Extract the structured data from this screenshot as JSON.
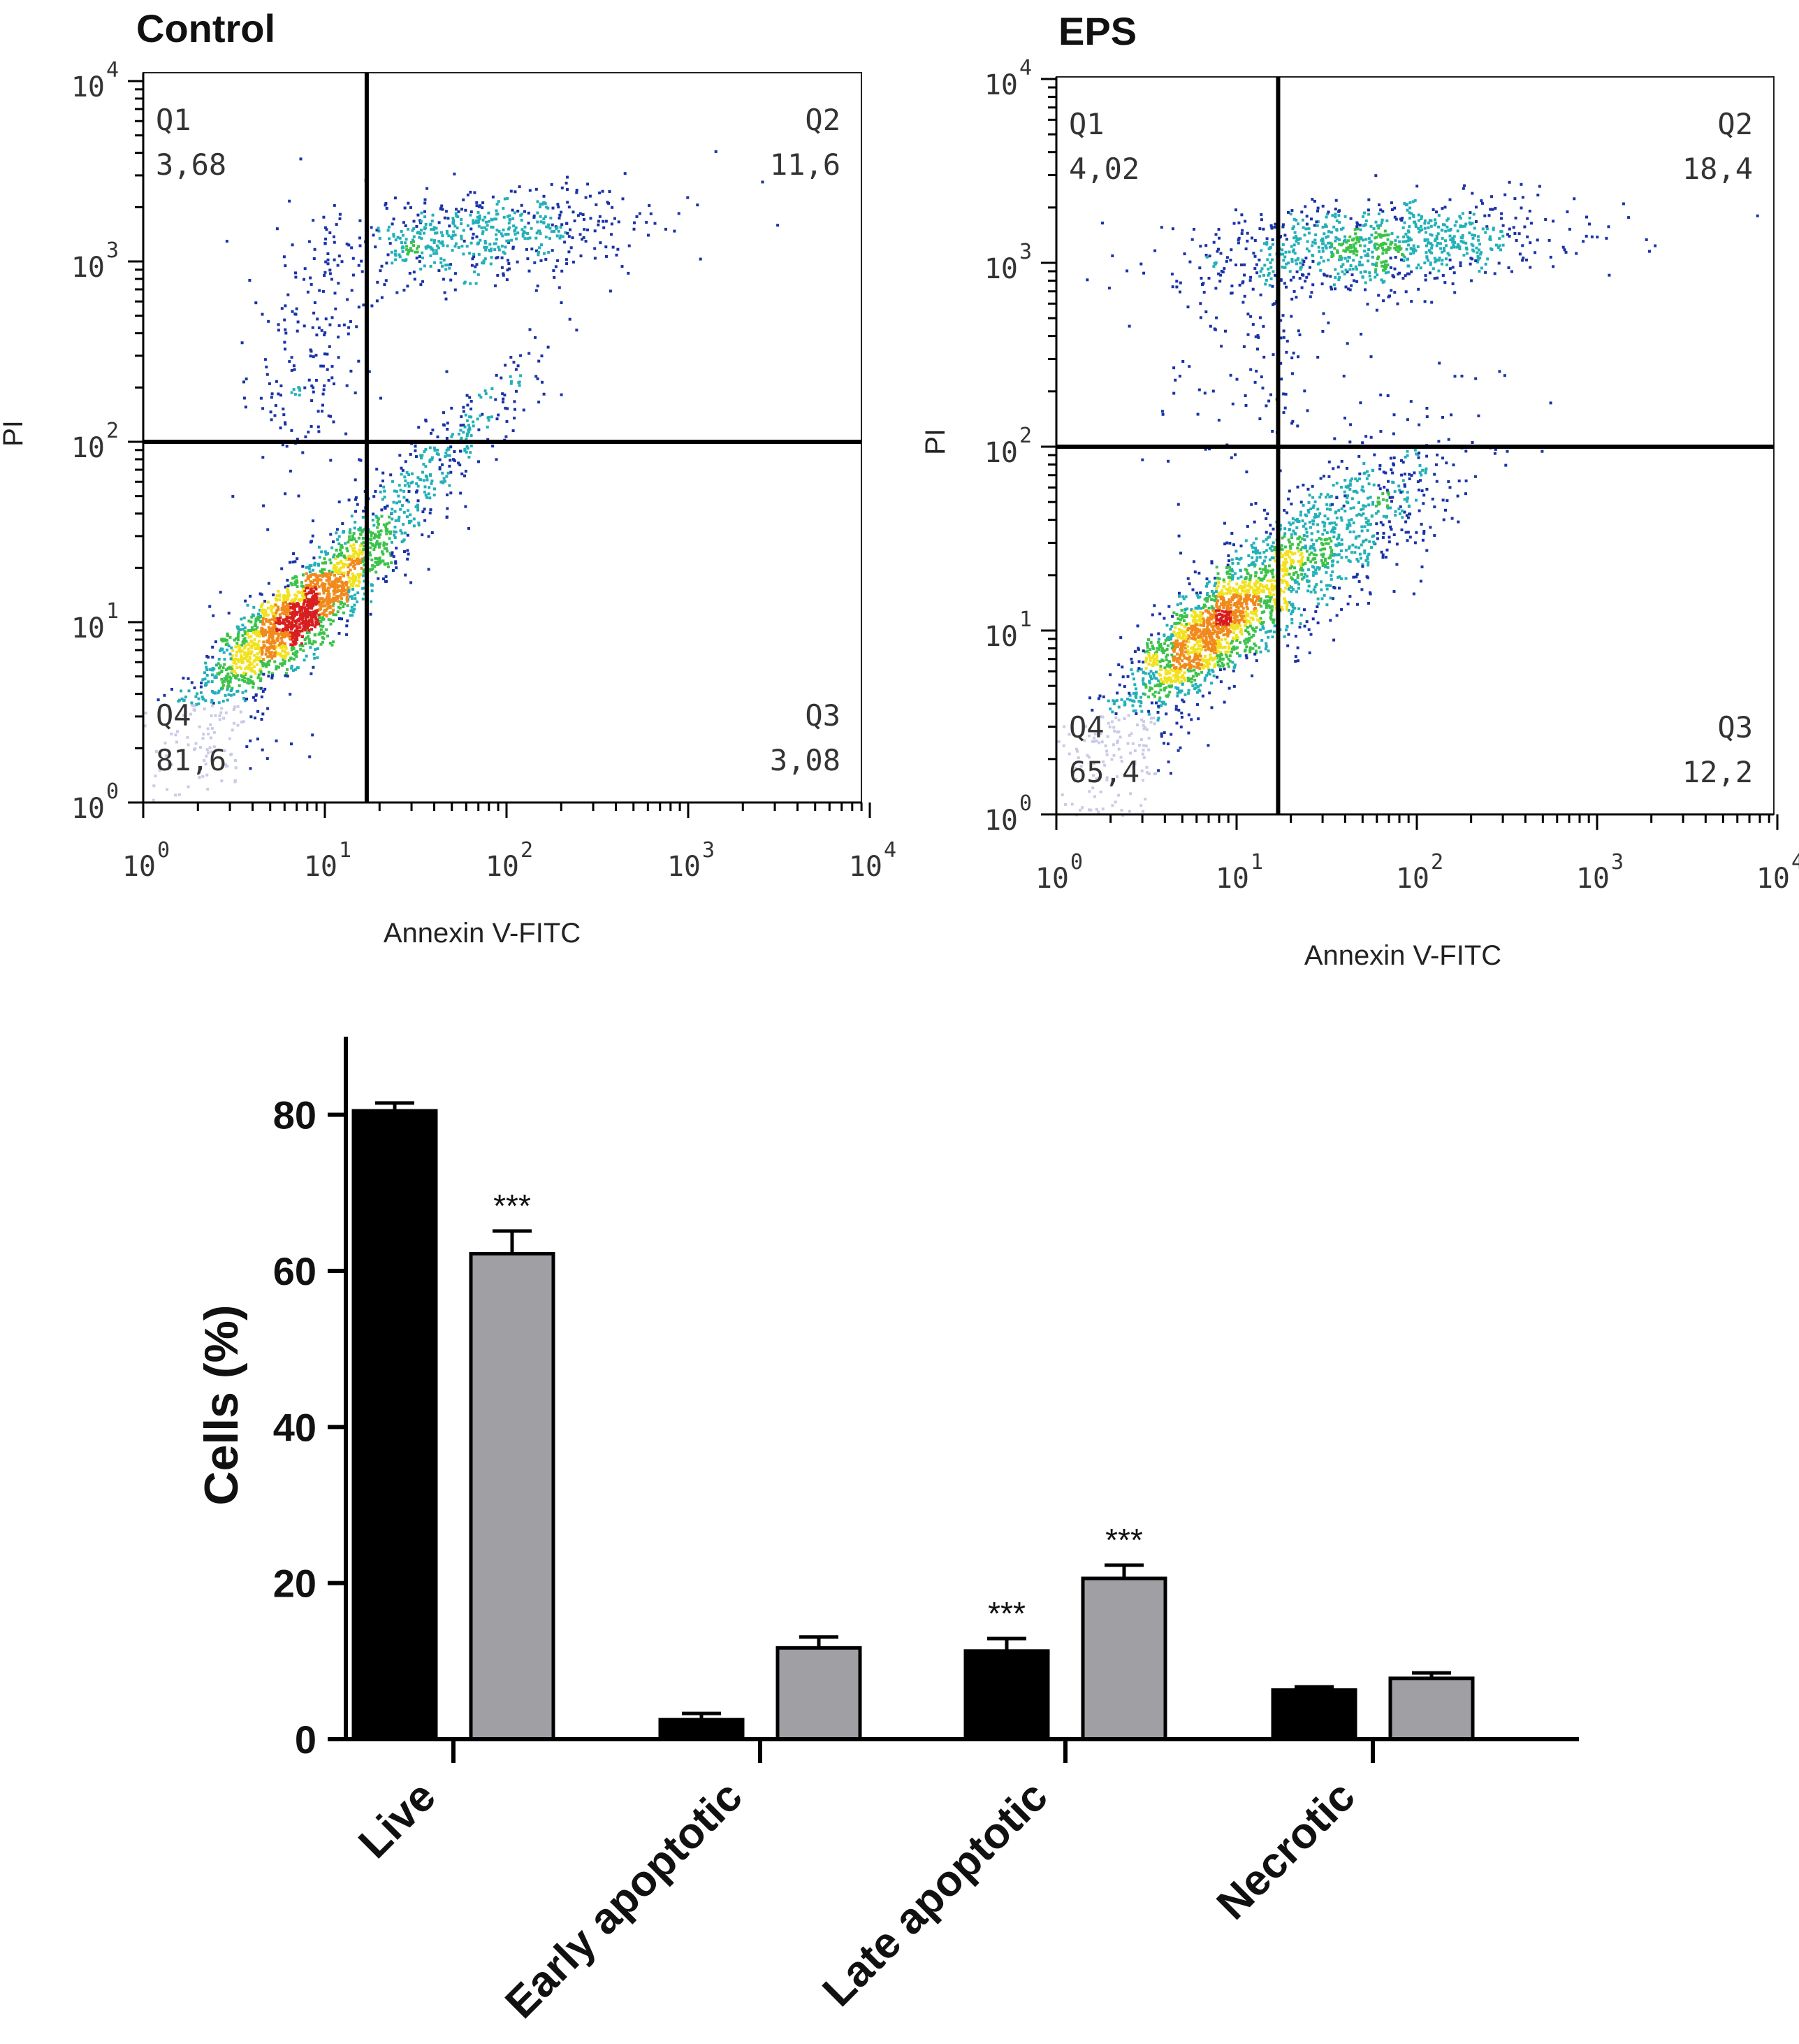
{
  "chart_data": [
    {
      "type": "scatter",
      "title": "Control",
      "xlabel": "Annexin V-FITC",
      "ylabel": "PI",
      "scale": "log",
      "xlim": [
        1,
        10000
      ],
      "ylim": [
        1,
        10000
      ],
      "ticks": [
        "10",
        "10",
        "10",
        "10",
        "10"
      ],
      "tick_exponents": [
        "0",
        "1",
        "2",
        "3",
        "4"
      ],
      "gate": {
        "x": 17,
        "y": 100
      },
      "quadrants": [
        {
          "name": "Q1",
          "value": "3,68"
        },
        {
          "name": "Q2",
          "value": "11,6"
        },
        {
          "name": "Q3",
          "value": "3,08"
        },
        {
          "name": "Q4",
          "value": "81,6"
        }
      ],
      "density_colors": [
        "#1a33a8",
        "#23b0b8",
        "#3cc24a",
        "#f2e21e",
        "#f08a1c",
        "#d81e1e"
      ]
    },
    {
      "type": "scatter",
      "title": "EPS",
      "xlabel": "Annexin V-FITC",
      "ylabel": "PI",
      "scale": "log",
      "xlim": [
        1,
        10000
      ],
      "ylim": [
        1,
        10000
      ],
      "ticks": [
        "10",
        "10",
        "10",
        "10",
        "10"
      ],
      "tick_exponents": [
        "0",
        "1",
        "2",
        "3",
        "4"
      ],
      "gate": {
        "x": 17,
        "y": 100
      },
      "quadrants": [
        {
          "name": "Q1",
          "value": "4,02"
        },
        {
          "name": "Q2",
          "value": "18,4"
        },
        {
          "name": "Q3",
          "value": "12,2"
        },
        {
          "name": "Q4",
          "value": "65,4"
        }
      ],
      "density_colors": [
        "#1a33a8",
        "#23b0b8",
        "#3cc24a",
        "#f2e21e",
        "#f08a1c",
        "#d81e1e"
      ]
    },
    {
      "type": "bar",
      "categories": [
        "Live",
        "Early apoptotic",
        "Late apoptotic",
        "Necrotic"
      ],
      "series": [
        {
          "values": [
            80.5,
            2.5,
            11.3,
            6.3
          ],
          "errors": [
            1.0,
            0.8,
            1.6,
            0.4
          ],
          "color": "#000000"
        },
        {
          "values": [
            62.2,
            11.7,
            20.6,
            7.8
          ],
          "errors": [
            2.9,
            1.4,
            1.7,
            0.7
          ],
          "color": "#a0a0a4"
        }
      ],
      "significance": [
        "",
        "***",
        "",
        "",
        "***",
        "***",
        "",
        ""
      ],
      "xlabel": "",
      "ylabel": "Cells (%)",
      "ylim": [
        0,
        90
      ],
      "yticks": [
        0,
        20,
        40,
        60,
        80
      ]
    }
  ]
}
